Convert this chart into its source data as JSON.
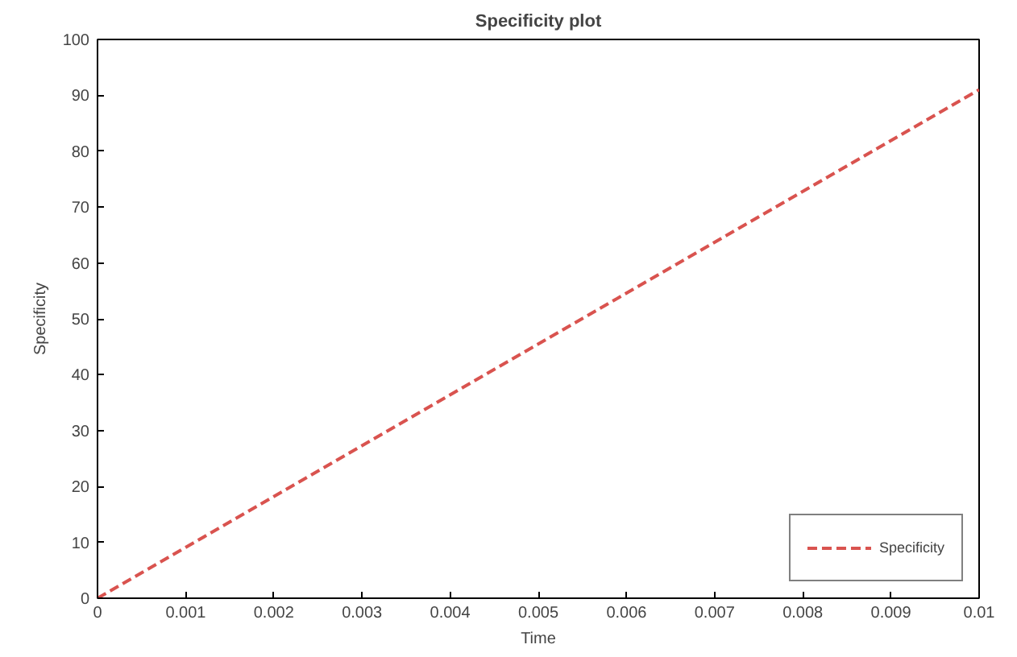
{
  "chart_data": {
    "type": "line",
    "title": "Specificity plot",
    "xlabel": "Time",
    "ylabel": "Specificity",
    "x": [
      0,
      0.01
    ],
    "series": [
      {
        "name": "Specificity",
        "color": "#d9534f",
        "values": [
          0,
          91
        ]
      }
    ],
    "xlim": [
      0,
      0.01
    ],
    "ylim": [
      0,
      100
    ],
    "xticks": [
      0,
      0.001,
      0.002,
      0.003,
      0.004,
      0.005,
      0.006,
      0.007,
      0.008,
      0.009,
      0.01
    ],
    "yticks": [
      0,
      10,
      20,
      30,
      40,
      50,
      60,
      70,
      80,
      90,
      100
    ],
    "legend": "bottom right",
    "line_style": "dashed",
    "grid": false
  }
}
